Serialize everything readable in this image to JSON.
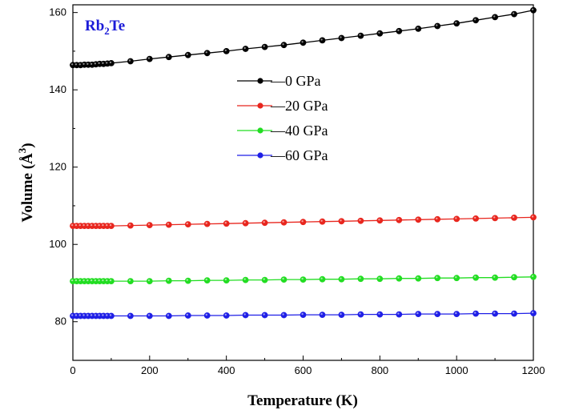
{
  "chart_data": {
    "type": "line",
    "title": "",
    "annotation": "Rb2Te",
    "annotation_color": "#1c1cd8",
    "xlabel": "Temperature (K)",
    "ylabel": "Volume (Å3)",
    "xlim": [
      0,
      1200
    ],
    "ylim": [
      70,
      162
    ],
    "x_ticks": [
      0,
      200,
      400,
      600,
      800,
      1000,
      1200
    ],
    "y_ticks": [
      80,
      100,
      120,
      140,
      160
    ],
    "grid": false,
    "legend_position": "upper-center",
    "series": [
      {
        "name": "0 GPa",
        "color": "#000000",
        "x": [
          0,
          10,
          20,
          30,
          40,
          50,
          60,
          70,
          80,
          90,
          100,
          150,
          200,
          250,
          300,
          350,
          400,
          450,
          500,
          550,
          600,
          650,
          700,
          750,
          800,
          850,
          900,
          950,
          1000,
          1050,
          1100,
          1150,
          1200
        ],
        "y": [
          146.4,
          146.4,
          146.4,
          146.5,
          146.5,
          146.5,
          146.6,
          146.7,
          146.7,
          146.8,
          146.9,
          147.4,
          148.0,
          148.5,
          149.0,
          149.5,
          150.0,
          150.6,
          151.1,
          151.6,
          152.2,
          152.8,
          153.4,
          154.0,
          154.6,
          155.2,
          155.8,
          156.5,
          157.2,
          158.0,
          158.8,
          159.6,
          160.6
        ]
      },
      {
        "name": "20 GPa",
        "color": "#e8261e",
        "x": [
          0,
          10,
          20,
          30,
          40,
          50,
          60,
          70,
          80,
          90,
          100,
          150,
          200,
          250,
          300,
          350,
          400,
          450,
          500,
          550,
          600,
          650,
          700,
          750,
          800,
          850,
          900,
          950,
          1000,
          1050,
          1100,
          1150,
          1200
        ],
        "y": [
          104.8,
          104.8,
          104.8,
          104.8,
          104.8,
          104.8,
          104.8,
          104.8,
          104.8,
          104.8,
          104.8,
          104.9,
          105.0,
          105.1,
          105.2,
          105.3,
          105.4,
          105.5,
          105.6,
          105.7,
          105.8,
          105.9,
          106.0,
          106.1,
          106.2,
          106.3,
          106.4,
          106.5,
          106.6,
          106.7,
          106.8,
          106.9,
          107.0
        ]
      },
      {
        "name": "40 GPa",
        "color": "#22dd22",
        "x": [
          0,
          10,
          20,
          30,
          40,
          50,
          60,
          70,
          80,
          90,
          100,
          150,
          200,
          250,
          300,
          350,
          400,
          450,
          500,
          550,
          600,
          650,
          700,
          750,
          800,
          850,
          900,
          950,
          1000,
          1050,
          1100,
          1150,
          1200
        ],
        "y": [
          90.5,
          90.5,
          90.5,
          90.5,
          90.5,
          90.5,
          90.5,
          90.5,
          90.5,
          90.5,
          90.5,
          90.5,
          90.5,
          90.6,
          90.6,
          90.7,
          90.7,
          90.8,
          90.8,
          90.9,
          90.9,
          91.0,
          91.0,
          91.1,
          91.1,
          91.2,
          91.2,
          91.3,
          91.3,
          91.4,
          91.4,
          91.5,
          91.6
        ]
      },
      {
        "name": "60 GPa",
        "color": "#1f1fe6",
        "x": [
          0,
          10,
          20,
          30,
          40,
          50,
          60,
          70,
          80,
          90,
          100,
          150,
          200,
          250,
          300,
          350,
          400,
          450,
          500,
          550,
          600,
          650,
          700,
          750,
          800,
          850,
          900,
          950,
          1000,
          1050,
          1100,
          1150,
          1200
        ],
        "y": [
          81.5,
          81.5,
          81.5,
          81.5,
          81.5,
          81.5,
          81.5,
          81.5,
          81.5,
          81.5,
          81.5,
          81.5,
          81.5,
          81.5,
          81.6,
          81.6,
          81.6,
          81.7,
          81.7,
          81.7,
          81.8,
          81.8,
          81.8,
          81.9,
          81.9,
          81.9,
          82.0,
          82.0,
          82.0,
          82.1,
          82.1,
          82.1,
          82.2
        ]
      }
    ]
  }
}
